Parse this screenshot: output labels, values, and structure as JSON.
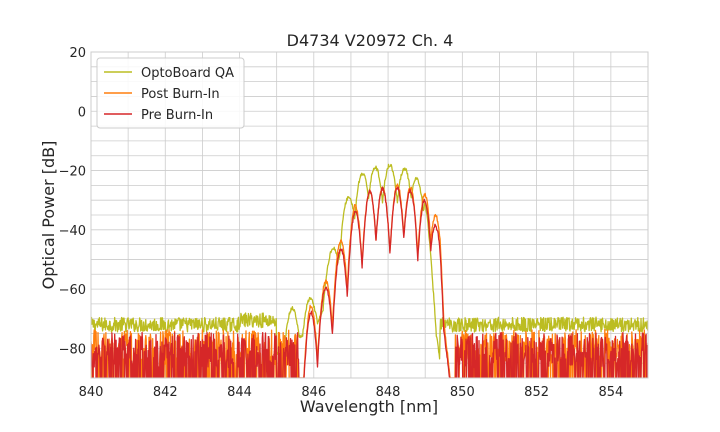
{
  "chart_data": {
    "type": "line",
    "title": "D4734 V20972 Ch. 4",
    "xlabel": "Wavelength [nm]",
    "ylabel": "Optical Power [dB]",
    "xlim": [
      840,
      855
    ],
    "ylim": [
      -90,
      20
    ],
    "grid": true,
    "legend_position": "top-left",
    "x_ticks": [
      840,
      841,
      842,
      843,
      844,
      845,
      846,
      847,
      848,
      849,
      850,
      851,
      852,
      853,
      854,
      855
    ],
    "x_tick_labels": [
      "840",
      "842",
      "844",
      "846",
      "848",
      "850",
      "852",
      "854"
    ],
    "x_tick_label_values": [
      840,
      842,
      844,
      846,
      848,
      850,
      852,
      854
    ],
    "y_ticks": [
      -90,
      -85,
      -80,
      -75,
      -70,
      -65,
      -60,
      -55,
      -50,
      -45,
      -40,
      -35,
      -30,
      -25,
      -20,
      -15,
      -10,
      -5,
      0,
      5,
      10,
      15,
      20
    ],
    "y_tick_labels": [
      "20",
      "0",
      "−20",
      "−40",
      "−60",
      "−80"
    ],
    "y_tick_label_values": [
      20,
      0,
      -20,
      -40,
      -60,
      -80
    ],
    "series": [
      {
        "name": "OptoBoard QA",
        "color": "#bcbd22",
        "noise_floor_db": -72,
        "envelope_points": [
          [
            845.0,
            -70
          ],
          [
            845.3,
            -68
          ],
          [
            845.6,
            -64
          ],
          [
            846.0,
            -63
          ],
          [
            846.4,
            -50
          ],
          [
            846.8,
            -32
          ],
          [
            847.2,
            -22
          ],
          [
            847.6,
            -19
          ],
          [
            848.0,
            -18
          ],
          [
            848.4,
            -19
          ],
          [
            848.7,
            -21
          ],
          [
            849.0,
            -28
          ],
          [
            849.2,
            -55
          ],
          [
            849.4,
            -72
          ]
        ],
        "peaks_nm": [
          845.4,
          845.9,
          846.45,
          846.9,
          847.3,
          847.65,
          848.05,
          848.45,
          848.8,
          849.1
        ]
      },
      {
        "name": "Post Burn-In",
        "color": "#ff7f0e",
        "noise_floor_db": -82,
        "envelope_points": [
          [
            845.6,
            -80
          ],
          [
            845.9,
            -66
          ],
          [
            846.3,
            -58
          ],
          [
            846.7,
            -44
          ],
          [
            847.1,
            -32
          ],
          [
            847.5,
            -27
          ],
          [
            847.9,
            -26
          ],
          [
            848.3,
            -25
          ],
          [
            848.7,
            -26
          ],
          [
            849.0,
            -28
          ],
          [
            849.4,
            -38
          ],
          [
            849.6,
            -60
          ],
          [
            849.8,
            -82
          ]
        ],
        "peaks_nm": [
          845.9,
          846.3,
          846.7,
          847.1,
          847.5,
          847.85,
          848.25,
          848.6,
          849.0,
          849.3
        ]
      },
      {
        "name": "Pre Burn-In",
        "color": "#d62728",
        "noise_floor_db": -83,
        "envelope_points": [
          [
            845.6,
            -82
          ],
          [
            845.9,
            -68
          ],
          [
            846.3,
            -60
          ],
          [
            846.7,
            -47
          ],
          [
            847.1,
            -34
          ],
          [
            847.5,
            -27
          ],
          [
            847.9,
            -26
          ],
          [
            848.3,
            -26
          ],
          [
            848.7,
            -27
          ],
          [
            849.0,
            -30
          ],
          [
            849.4,
            -42
          ],
          [
            849.6,
            -62
          ],
          [
            849.8,
            -83
          ]
        ],
        "peaks_nm": [
          845.9,
          846.3,
          846.7,
          847.1,
          847.5,
          847.85,
          848.25,
          848.6,
          849.0,
          849.3
        ]
      }
    ]
  }
}
